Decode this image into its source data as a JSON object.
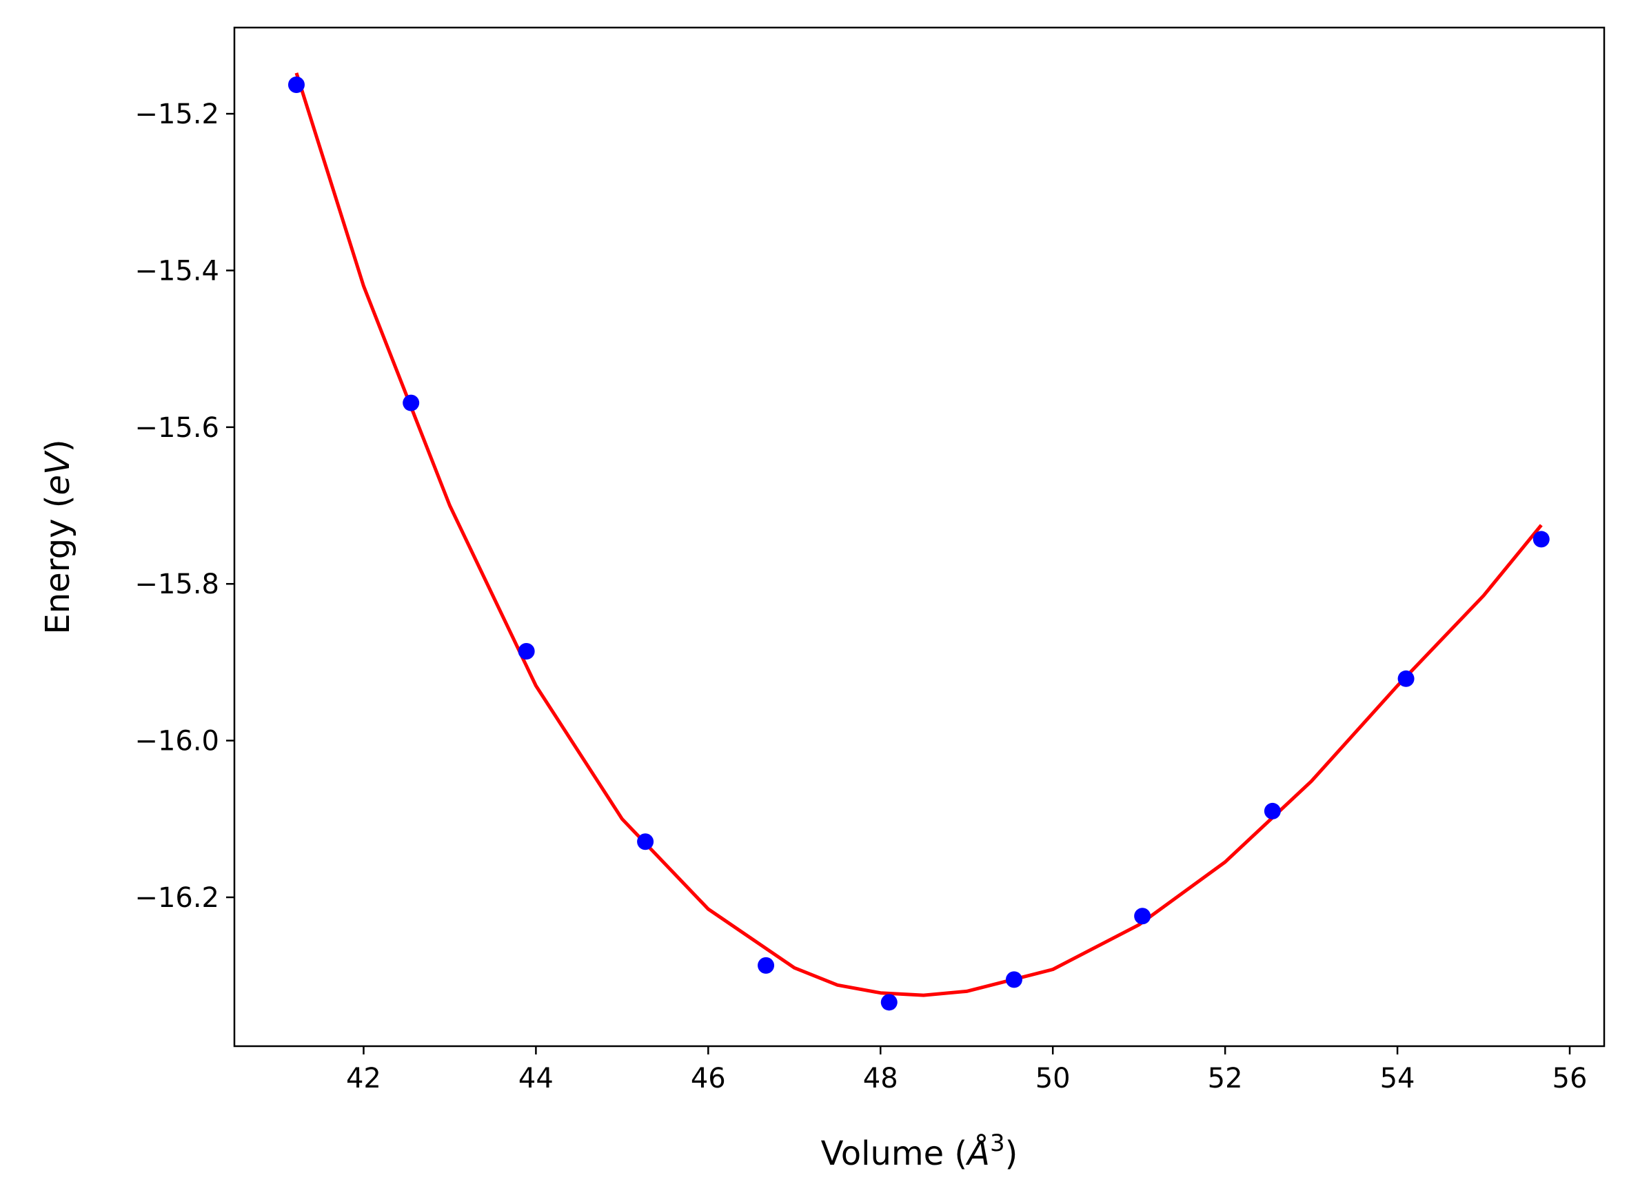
{
  "chart_data": {
    "type": "scatter",
    "title": "",
    "xlabel": {
      "prefix": "Volume (",
      "symbol": "Å",
      "superscript": "3",
      "suffix": ")"
    },
    "ylabel": {
      "prefix": "Energy (",
      "symbol": "eV",
      "suffix": ")"
    },
    "xlim": [
      40.5,
      56.4
    ],
    "ylim": [
      -16.39,
      -15.09
    ],
    "x_ticks": [
      42,
      44,
      46,
      48,
      50,
      52,
      54,
      56
    ],
    "x_tick_labels": [
      "42",
      "44",
      "46",
      "48",
      "50",
      "52",
      "54",
      "56"
    ],
    "y_ticks": [
      -15.2,
      -15.4,
      -15.6,
      -15.8,
      -16.0,
      -16.2
    ],
    "y_tick_labels": [
      "−15.2",
      "−15.4",
      "−15.6",
      "−15.8",
      "−16.0",
      "−16.2"
    ],
    "grid": false,
    "legend": "none",
    "series": [
      {
        "kind": "points",
        "color": "#0000ff",
        "x": [
          41.22,
          42.55,
          43.89,
          45.27,
          46.67,
          48.1,
          49.55,
          51.04,
          52.55,
          54.1,
          55.67
        ],
        "y": [
          -15.163,
          -15.569,
          -15.886,
          -16.129,
          -16.287,
          -16.334,
          -16.305,
          -16.224,
          -16.09,
          -15.921,
          -15.743
        ]
      },
      {
        "kind": "line",
        "color": "#ff0000",
        "x": [
          41.22,
          42.0,
          43.0,
          44.0,
          45.0,
          46.0,
          47.0,
          47.5,
          48.0,
          48.5,
          49.0,
          50.0,
          51.0,
          52.0,
          53.0,
          54.0,
          55.0,
          55.67
        ],
        "y": [
          -15.148,
          -15.42,
          -15.7,
          -15.93,
          -16.1,
          -16.215,
          -16.29,
          -16.312,
          -16.322,
          -16.325,
          -16.32,
          -16.292,
          -16.235,
          -16.155,
          -16.052,
          -15.93,
          -15.815,
          -15.725
        ]
      }
    ]
  }
}
